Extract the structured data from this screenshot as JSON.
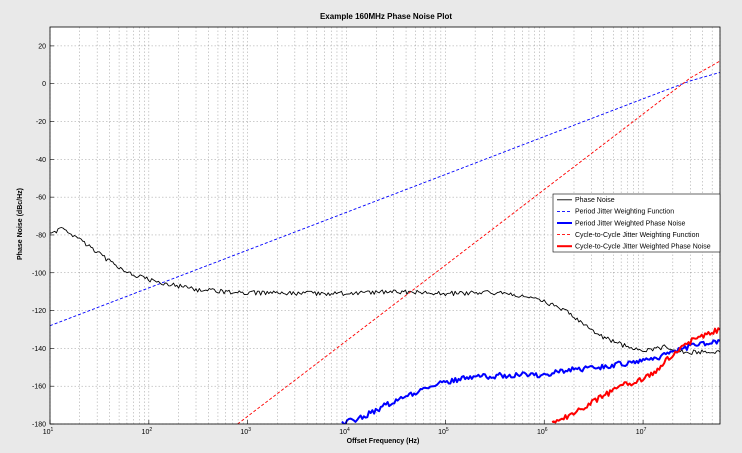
{
  "chart_data": {
    "type": "line",
    "title": "Example 160MHz Phase Noise Plot",
    "xlabel": "Offset Frequency (Hz)",
    "ylabel": "Phase Noise (dBc/Hz)",
    "x_scale": "log",
    "xlim": [
      10,
      60000000
    ],
    "ylim": [
      -180,
      30
    ],
    "grid": true,
    "legend_position": "right",
    "x_ticks": [
      {
        "value": 10,
        "base": "10",
        "exp": "1"
      },
      {
        "value": 100,
        "base": "10",
        "exp": "2"
      },
      {
        "value": 1000,
        "base": "10",
        "exp": "3"
      },
      {
        "value": 10000,
        "base": "10",
        "exp": "4"
      },
      {
        "value": 100000,
        "base": "10",
        "exp": "5"
      },
      {
        "value": 1000000,
        "base": "10",
        "exp": "6"
      },
      {
        "value": 10000000,
        "base": "10",
        "exp": "7"
      }
    ],
    "y_ticks": [
      20,
      0,
      -20,
      -40,
      -60,
      -80,
      -100,
      -120,
      -140,
      -160,
      -180
    ],
    "series": [
      {
        "name": "Phase Noise",
        "color": "#000000",
        "style": "solid",
        "weight": "thin",
        "points": [
          [
            10,
            -79
          ],
          [
            13,
            -77
          ],
          [
            17,
            -80
          ],
          [
            25,
            -86
          ],
          [
            40,
            -94
          ],
          [
            70,
            -101
          ],
          [
            120,
            -105
          ],
          [
            200,
            -107
          ],
          [
            300,
            -109
          ],
          [
            600,
            -110
          ],
          [
            1000,
            -110.5
          ],
          [
            3000,
            -111
          ],
          [
            10000,
            -111
          ],
          [
            30000,
            -110
          ],
          [
            100000,
            -111
          ],
          [
            300000,
            -110.5
          ],
          [
            600000,
            -112
          ],
          [
            1000000,
            -115
          ],
          [
            1600000,
            -120
          ],
          [
            2500000,
            -127
          ],
          [
            3500000,
            -133
          ],
          [
            6000000,
            -138
          ],
          [
            10000000,
            -141
          ],
          [
            14000000,
            -140
          ],
          [
            17000000,
            -139
          ],
          [
            22000000,
            -141
          ],
          [
            30000000,
            -142
          ],
          [
            60000000,
            -142
          ]
        ]
      },
      {
        "name": "Period Jitter Weighting Function",
        "color": "#0000ff",
        "style": "dashed",
        "weight": "thin",
        "points": [
          [
            10,
            -128
          ],
          [
            100,
            -108
          ],
          [
            1000,
            -88
          ],
          [
            10000,
            -68
          ],
          [
            100000,
            -48
          ],
          [
            1000000,
            -28
          ],
          [
            10000000,
            -8
          ],
          [
            30000000,
            1.5
          ],
          [
            60000000,
            6
          ]
        ]
      },
      {
        "name": "Period Jitter Weighted Phase Noise",
        "color": "#0000ff",
        "style": "solid",
        "weight": "thick",
        "points": [
          [
            9000,
            -180
          ],
          [
            15000,
            -176
          ],
          [
            25000,
            -170
          ],
          [
            40000,
            -165
          ],
          [
            70000,
            -160
          ],
          [
            100000,
            -158
          ],
          [
            200000,
            -155
          ],
          [
            500000,
            -154
          ],
          [
            1000000,
            -154
          ],
          [
            1300000,
            -152
          ],
          [
            2000000,
            -151
          ],
          [
            4000000,
            -150
          ],
          [
            8000000,
            -147
          ],
          [
            14000000,
            -145
          ],
          [
            17000000,
            -142
          ],
          [
            22000000,
            -141
          ],
          [
            35000000,
            -138
          ],
          [
            60000000,
            -136
          ]
        ]
      },
      {
        "name": "Cycle-to-Cycle Jitter Weighting Function",
        "color": "#ff0000",
        "style": "dashed",
        "weight": "thin",
        "points": [
          [
            790,
            -180
          ],
          [
            10000,
            -136
          ],
          [
            100000,
            -96
          ],
          [
            1000000,
            -56
          ],
          [
            10000000,
            -16
          ],
          [
            30000000,
            3
          ],
          [
            60000000,
            12
          ]
        ]
      },
      {
        "name": "Cycle-to-Cycle Jitter Weighted Phase Noise",
        "color": "#ff0000",
        "style": "solid",
        "weight": "thick",
        "points": [
          [
            1200000,
            -180
          ],
          [
            1700000,
            -176
          ],
          [
            2500000,
            -171
          ],
          [
            4000000,
            -165
          ],
          [
            6000000,
            -160
          ],
          [
            10000000,
            -156
          ],
          [
            14000000,
            -152
          ],
          [
            17000000,
            -146
          ],
          [
            22000000,
            -141
          ],
          [
            35000000,
            -134
          ],
          [
            60000000,
            -130
          ]
        ]
      }
    ]
  }
}
